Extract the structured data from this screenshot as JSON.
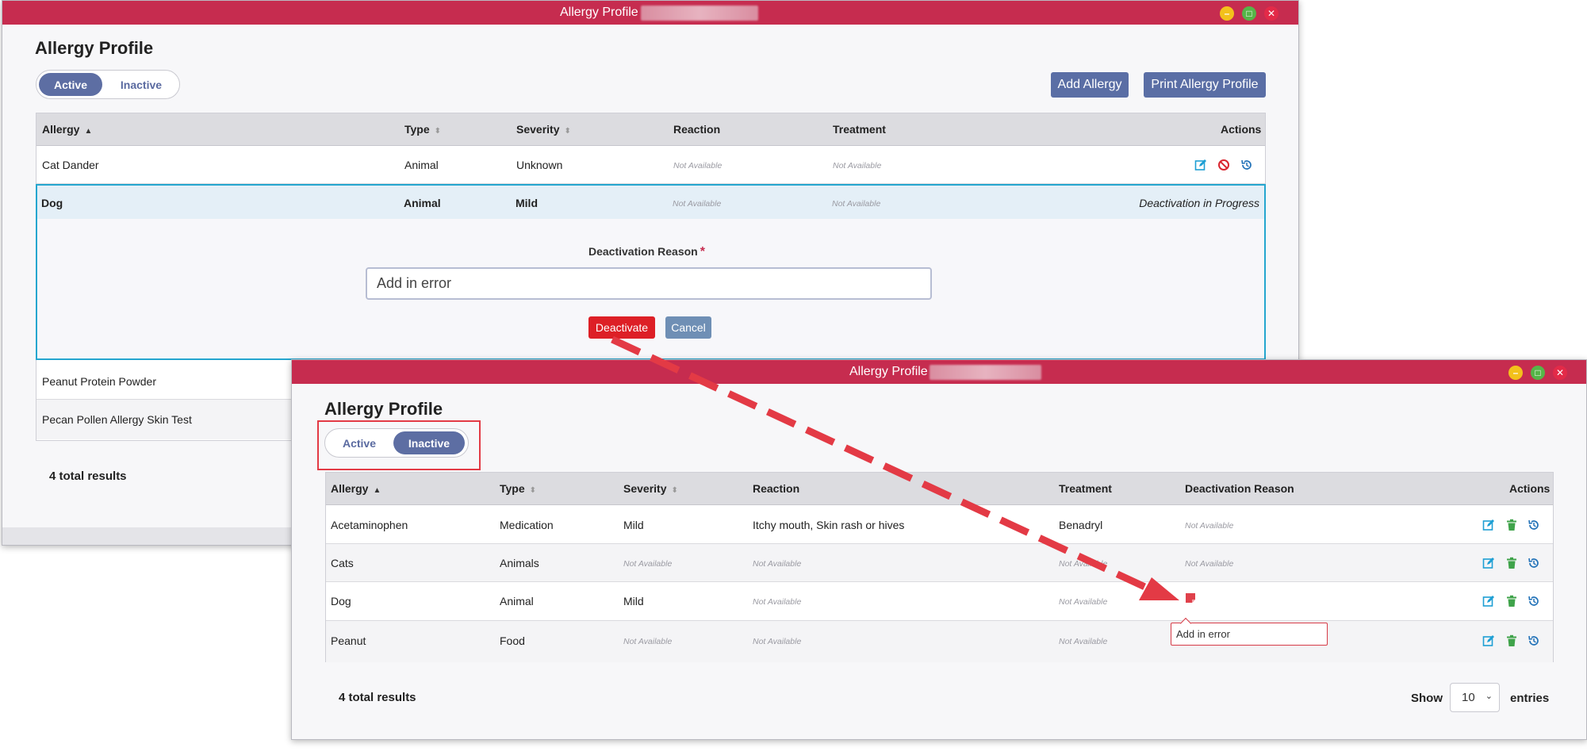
{
  "window1": {
    "title": "Allergy Profile |",
    "heading": "Allergy Profile",
    "toggle": {
      "active": "Active",
      "inactive": "Inactive"
    },
    "buttons": {
      "add": "Add Allergy",
      "print": "Print Allergy Profile"
    },
    "columns": {
      "allergy": "Allergy",
      "type": "Type",
      "severity": "Severity",
      "reaction": "Reaction",
      "treatment": "Treatment",
      "actions": "Actions"
    },
    "rows": [
      {
        "allergy": "Cat Dander",
        "type": "Animal",
        "severity": "Unknown",
        "reaction": "Not Available",
        "treatment": "Not Available"
      },
      {
        "allergy": "Dog",
        "type": "Animal",
        "severity": "Mild",
        "reaction": "Not Available",
        "treatment": "Not Available",
        "status": "Deactivation in Progress"
      },
      {
        "allergy": "Peanut Protein Powder"
      },
      {
        "allergy": "Pecan Pollen Allergy Skin Test"
      }
    ],
    "deactivation": {
      "label": "Deactivation Reason",
      "required_mark": "*",
      "value": "Add in error",
      "deactivate_label": "Deactivate",
      "cancel_label": "Cancel"
    },
    "total": "4 total results"
  },
  "window2": {
    "title": "Allergy Profile |",
    "heading": "Allergy Profile",
    "toggle": {
      "active": "Active",
      "inactive": "Inactive"
    },
    "columns": {
      "allergy": "Allergy",
      "type": "Type",
      "severity": "Severity",
      "reaction": "Reaction",
      "treatment": "Treatment",
      "deactivation_reason": "Deactivation Reason",
      "actions": "Actions"
    },
    "rows": [
      {
        "allergy": "Acetaminophen",
        "type": "Medication",
        "severity": "Mild",
        "reaction": "Itchy mouth, Skin rash or hives",
        "treatment": "Benadryl",
        "reason": "Not Available"
      },
      {
        "allergy": "Cats",
        "type": "Animals",
        "severity": "Not Available",
        "reaction": "Not Available",
        "treatment": "Not Available",
        "reason": "Not Available"
      },
      {
        "allergy": "Dog",
        "type": "Animal",
        "severity": "Mild",
        "reaction": "Not Available",
        "treatment": "Not Available"
      },
      {
        "allergy": "Peanut",
        "type": "Food",
        "severity": "Not Available",
        "reaction": "Not Available",
        "treatment": "Not Available"
      }
    ],
    "tooltip": "Add in error",
    "total": "4 total results",
    "show_label": "Show",
    "page_size": "10",
    "entries_label": "entries"
  },
  "colors": {
    "titlebar": "#c62c4f",
    "primary_button": "#5a6ea5",
    "deactivate": "#dd1f26",
    "annotation": "#e33a45",
    "row_focus": "#25a6cf"
  }
}
